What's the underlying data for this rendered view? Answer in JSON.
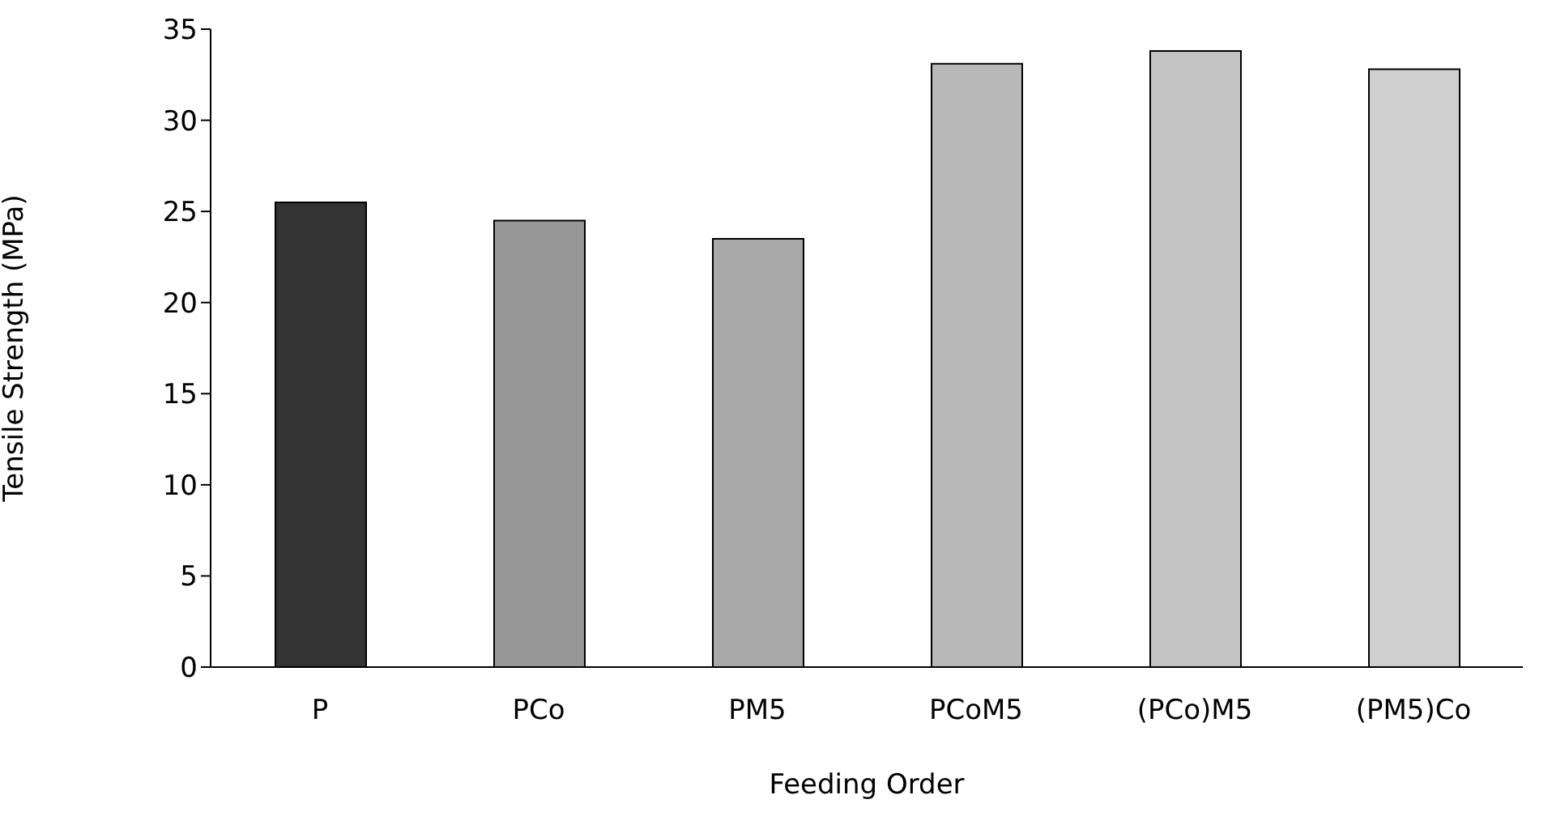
{
  "chart_data": {
    "type": "bar",
    "xlabel": "Feeding Order",
    "ylabel": "Tensile Strength (MPa)",
    "categories": [
      "P",
      "PCo",
      "PM5",
      "PCoM5",
      "(PCo)M5",
      "(PM5)Co"
    ],
    "values": [
      25.5,
      24.5,
      23.5,
      33.1,
      33.8,
      32.8
    ],
    "colors": [
      "#333333",
      "#969696",
      "#a8a8a8",
      "#b8b8b8",
      "#c4c4c4",
      "#d0d0d0"
    ],
    "ylim": [
      0,
      35
    ],
    "yticks": [
      0,
      5,
      10,
      15,
      20,
      25,
      30,
      35
    ],
    "grid": false,
    "legend": false
  }
}
